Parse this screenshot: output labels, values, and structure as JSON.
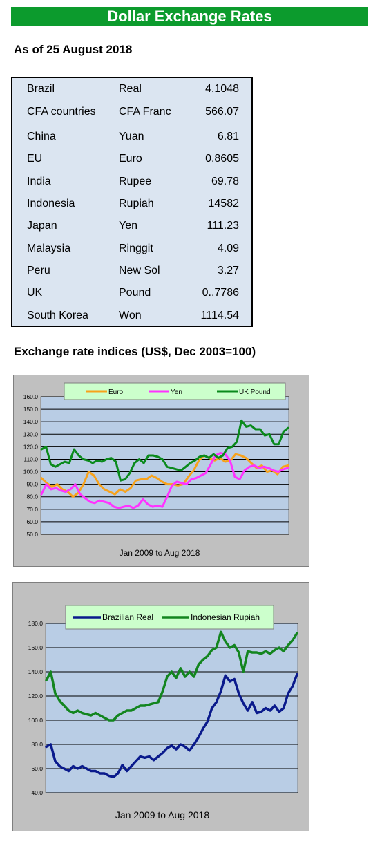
{
  "header": {
    "title": "Dollar Exchange Rates"
  },
  "as_of": "As of 25 August 2018",
  "rates": [
    {
      "country": "Brazil",
      "currency": "Real",
      "rate": "4.1048"
    },
    {
      "country": "CFA countries",
      "currency": "CFA Franc",
      "rate": "566.07"
    },
    {
      "country": "China",
      "currency": "Yuan",
      "rate": "6.81"
    },
    {
      "country": "EU",
      "currency": "Euro",
      "rate": "0.8605"
    },
    {
      "country": "India",
      "currency": "Rupee",
      "rate": "69.78"
    },
    {
      "country": "Indonesia",
      "currency": "Rupiah",
      "rate": "14582"
    },
    {
      "country": "Japan",
      "currency": "Yen",
      "rate": "111.23"
    },
    {
      "country": "Malaysia",
      "currency": "Ringgit",
      "rate": "4.09"
    },
    {
      "country": "Peru",
      "currency": "New Sol",
      "rate": "3.27"
    },
    {
      "country": "UK",
      "currency": "Pound",
      "rate": "0.,7786"
    },
    {
      "country": "South Korea",
      "currency": "Won",
      "rate": "1114.54"
    }
  ],
  "indices_heading": "Exchange rate indices (US$, Dec 2003=100)",
  "colors": {
    "banner": "#0c9b2d",
    "table_bg": "#dbe5f1",
    "chart_frame": "#c0c0c0",
    "plot_bg": "#b9cde5",
    "legend_bg": "#ccffcc",
    "euro": "#f7a21b",
    "yen": "#ff33ff",
    "pound": "#0a8a1c",
    "real": "#0a1a8c",
    "rupiah": "#13851f"
  },
  "chart_data": [
    {
      "type": "line",
      "xlabel": "Jan 2009  to Aug 2018",
      "ylim": [
        50,
        160
      ],
      "y_ticks": [
        "50.0",
        "60.0",
        "70.0",
        "80.0",
        "90.0",
        "100.0",
        "110.0",
        "120.0",
        "130.0",
        "140.0",
        "150.0",
        "160.0"
      ],
      "grid": true,
      "legend_position": "top",
      "x_start": "Jan 2009",
      "x_end": "Aug 2018",
      "series": [
        {
          "name": "Euro",
          "color": "#f7a21b",
          "values": [
            95,
            91,
            88,
            90,
            86,
            84,
            80,
            83,
            90,
            100,
            97,
            90,
            86,
            84,
            82,
            86,
            84,
            87,
            93,
            94,
            94,
            97,
            95,
            92,
            90,
            90,
            89,
            90,
            96,
            101,
            109,
            113,
            111,
            109,
            111,
            108,
            109,
            114,
            113,
            111,
            107,
            103,
            105,
            100,
            101,
            98,
            104,
            105
          ]
        },
        {
          "name": "Yen",
          "color": "#ff33ff",
          "values": [
            82,
            90,
            86,
            87,
            85,
            84,
            86,
            90,
            82,
            79,
            76,
            75,
            77,
            76,
            75,
            72,
            71,
            72,
            73,
            71,
            73,
            78,
            74,
            72,
            73,
            72,
            80,
            89,
            92,
            91,
            90,
            94,
            95,
            97,
            99,
            106,
            113,
            115,
            114,
            109,
            96,
            94,
            101,
            104,
            105,
            103,
            104,
            103,
            101,
            100,
            102,
            103
          ]
        },
        {
          "name": "UK Pound",
          "color": "#0a8a1c",
          "values": [
            118,
            120,
            106,
            104,
            106,
            108,
            107,
            118,
            113,
            110,
            109,
            107,
            109,
            108,
            110,
            111,
            108,
            93,
            94,
            99,
            107,
            110,
            107,
            113,
            113,
            112,
            110,
            104,
            103,
            102,
            101,
            104,
            107,
            109,
            112,
            113,
            111,
            114,
            111,
            113,
            119,
            120,
            124,
            141,
            136,
            137,
            134,
            134,
            129,
            130,
            122,
            122,
            132,
            135
          ]
        }
      ]
    },
    {
      "type": "line",
      "xlabel": "Jan 2009  to Aug 2018",
      "ylim": [
        40,
        180
      ],
      "y_ticks": [
        "40.0",
        "60.0",
        "80.0",
        "100.0",
        "120.0",
        "140.0",
        "160.0",
        "180.0"
      ],
      "grid": true,
      "legend_position": "top",
      "x_start": "Jan 2009",
      "x_end": "Aug 2018",
      "series": [
        {
          "name": "Brazilian Real",
          "color": "#0a1a8c",
          "values": [
            78,
            80,
            66,
            62,
            60,
            58,
            62,
            60,
            62,
            60,
            58,
            58,
            56,
            56,
            54,
            53,
            56,
            63,
            58,
            62,
            66,
            70,
            69,
            70,
            67,
            70,
            73,
            77,
            79,
            76,
            80,
            78,
            75,
            80,
            86,
            93,
            99,
            110,
            115,
            124,
            137,
            132,
            134,
            122,
            114,
            108,
            115,
            106,
            107,
            110,
            108,
            112,
            107,
            110,
            122,
            128,
            138
          ]
        },
        {
          "name": "Indonesian Rupiah",
          "color": "#13851f",
          "values": [
            133,
            140,
            122,
            116,
            112,
            108,
            106,
            108,
            106,
            105,
            104,
            106,
            104,
            102,
            100,
            100,
            104,
            106,
            108,
            108,
            110,
            112,
            112,
            113,
            114,
            115,
            124,
            136,
            140,
            135,
            143,
            136,
            140,
            136,
            146,
            150,
            153,
            158,
            160,
            173,
            165,
            160,
            162,
            156,
            140,
            157,
            156,
            156,
            155,
            157,
            155,
            158,
            160,
            157,
            162,
            166,
            172
          ]
        }
      ]
    }
  ]
}
